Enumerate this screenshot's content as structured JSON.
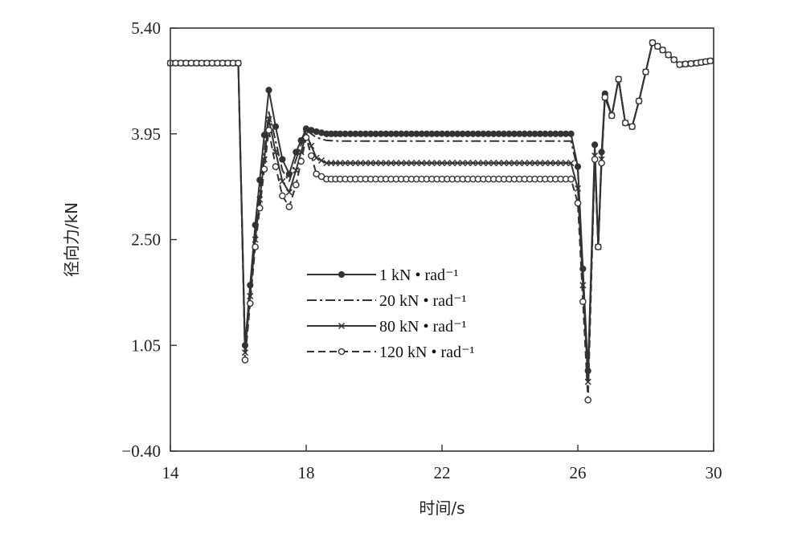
{
  "chart_data": {
    "type": "line",
    "xlabel": "时间/s",
    "ylabel": "径向力/kN",
    "xlim": [
      14,
      30
    ],
    "ylim": [
      -0.4,
      5.4
    ],
    "xticks": [
      "14",
      "18",
      "22",
      "26",
      "30"
    ],
    "xtick_values": [
      14,
      18,
      22,
      26,
      30
    ],
    "yticks": [
      "-0.40",
      "1.05",
      "2.50",
      "3.95",
      "5.40"
    ],
    "ytick_values": [
      -0.4,
      1.05,
      2.5,
      3.95,
      5.4
    ],
    "legend_position": "center",
    "series": [
      {
        "name": "1 kN • rad⁻¹",
        "dash": "solid",
        "marker": "filled-circle",
        "x": [
          14.0,
          16.0,
          16.2,
          16.5,
          16.9,
          17.1,
          17.3,
          17.5,
          17.7,
          18.0,
          18.3,
          18.6,
          19.0,
          22.0,
          25.8,
          26.0,
          26.3,
          26.5,
          26.6,
          26.7,
          26.8,
          27.0,
          27.2,
          27.4,
          27.6,
          27.8,
          28.0,
          28.2,
          28.5,
          29.0,
          29.5,
          29.9
        ],
        "y": [
          4.92,
          4.92,
          1.05,
          2.7,
          4.55,
          4.05,
          3.6,
          3.4,
          3.7,
          4.02,
          3.98,
          3.95,
          3.95,
          3.95,
          3.95,
          3.5,
          0.7,
          3.8,
          2.4,
          3.7,
          4.5,
          4.2,
          4.7,
          4.1,
          4.05,
          4.4,
          4.8,
          5.2,
          5.1,
          4.9,
          4.92,
          4.95
        ]
      },
      {
        "name": "20 kN • rad⁻¹",
        "dash": "dash-dot",
        "marker": "none",
        "x": [
          14.0,
          16.0,
          16.2,
          16.5,
          16.9,
          17.1,
          17.3,
          17.5,
          17.7,
          18.0,
          18.3,
          18.6,
          19.0,
          22.0,
          25.8,
          26.0,
          26.3,
          26.5,
          26.6,
          26.7,
          26.8,
          27.0,
          27.2,
          27.4,
          27.6,
          27.8,
          28.0,
          28.2,
          28.5,
          29.0,
          29.5,
          29.9
        ],
        "y": [
          4.92,
          4.92,
          1.0,
          2.6,
          4.25,
          3.85,
          3.45,
          3.3,
          3.6,
          4.0,
          3.9,
          3.86,
          3.85,
          3.85,
          3.85,
          3.45,
          0.6,
          3.7,
          2.4,
          3.65,
          4.45,
          4.2,
          4.7,
          4.1,
          4.05,
          4.4,
          4.8,
          5.2,
          5.1,
          4.9,
          4.92,
          4.95
        ]
      },
      {
        "name": "80 kN • rad⁻¹",
        "dash": "solid",
        "marker": "x",
        "x": [
          14.0,
          16.0,
          16.2,
          16.5,
          16.9,
          17.1,
          17.3,
          17.5,
          17.7,
          18.0,
          18.3,
          18.6,
          19.0,
          22.0,
          25.8,
          26.0,
          26.3,
          26.5,
          26.6,
          26.7,
          26.8,
          27.0,
          27.2,
          27.4,
          27.6,
          27.8,
          28.0,
          28.2,
          28.5,
          29.0,
          29.5,
          29.9
        ],
        "y": [
          4.92,
          4.92,
          0.95,
          2.5,
          4.15,
          3.7,
          3.3,
          3.15,
          3.45,
          3.95,
          3.62,
          3.55,
          3.55,
          3.55,
          3.55,
          3.2,
          0.55,
          3.65,
          2.4,
          3.6,
          4.45,
          4.2,
          4.7,
          4.1,
          4.05,
          4.4,
          4.8,
          5.2,
          5.1,
          4.9,
          4.92,
          4.95
        ]
      },
      {
        "name": "120 kN • rad⁻¹",
        "dash": "dashed",
        "marker": "open-circle",
        "x": [
          14.0,
          16.0,
          16.2,
          16.5,
          16.9,
          17.1,
          17.3,
          17.5,
          17.7,
          18.0,
          18.3,
          18.6,
          19.0,
          22.0,
          25.8,
          26.0,
          26.3,
          26.5,
          26.6,
          26.7,
          26.8,
          27.0,
          27.2,
          27.4,
          27.6,
          27.8,
          28.0,
          28.2,
          28.5,
          29.0,
          29.5,
          29.9
        ],
        "y": [
          4.92,
          4.92,
          0.85,
          2.4,
          4.0,
          3.5,
          3.1,
          2.95,
          3.25,
          3.9,
          3.4,
          3.33,
          3.33,
          3.33,
          3.33,
          3.0,
          0.3,
          3.6,
          2.4,
          3.55,
          4.45,
          4.2,
          4.7,
          4.1,
          4.05,
          4.4,
          4.8,
          5.2,
          5.1,
          4.9,
          4.92,
          4.95
        ]
      }
    ]
  }
}
